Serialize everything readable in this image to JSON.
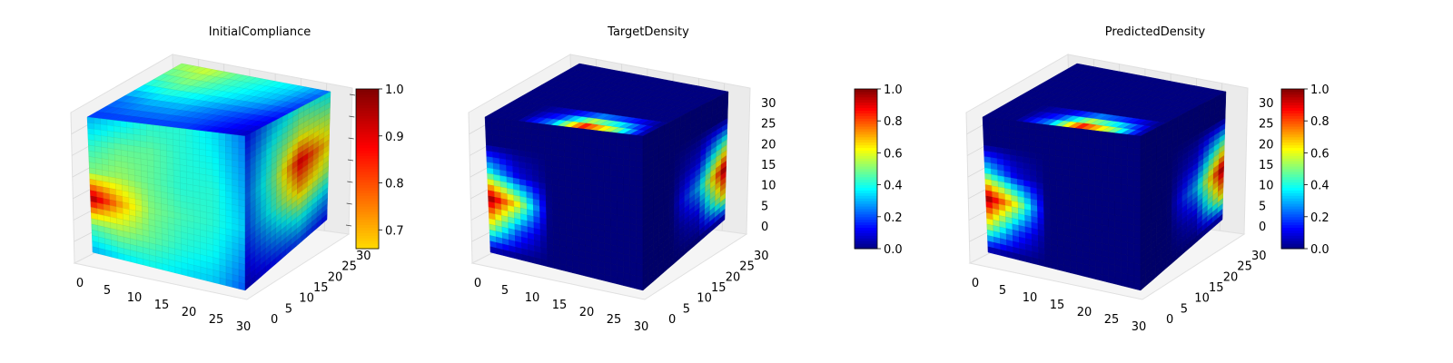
{
  "chart_data": [
    {
      "type": "voxel-3d",
      "title": "InitialCompliance",
      "x_ticks": [
        "0",
        "5",
        "10",
        "15",
        "20",
        "25",
        "30"
      ],
      "y_ticks": [
        "0",
        "5",
        "10",
        "15",
        "20",
        "25",
        "30"
      ],
      "z_ticks": [],
      "colorbar": {
        "min": 0.66,
        "max": 1.0,
        "ticks": [
          "0.7",
          "0.8",
          "0.9",
          "1.0"
        ],
        "tick_values": [
          0.7,
          0.8,
          0.9,
          1.0
        ]
      },
      "colormap": "jet",
      "front_face_levels": [
        [
          0.76,
          0.78,
          0.8,
          0.8,
          0.78,
          0.74
        ],
        [
          0.8,
          0.82,
          0.82,
          0.8,
          0.79,
          0.75
        ],
        [
          0.83,
          0.84,
          0.82,
          0.8,
          0.8,
          0.76
        ],
        [
          0.99,
          0.9,
          0.83,
          0.81,
          0.8,
          0.77
        ],
        [
          0.82,
          0.84,
          0.82,
          0.8,
          0.79,
          0.75
        ],
        [
          0.76,
          0.78,
          0.79,
          0.78,
          0.77,
          0.73
        ]
      ],
      "side_face_levels": [
        [
          0.7,
          0.76,
          0.8,
          0.78
        ],
        [
          0.72,
          0.8,
          0.86,
          0.84
        ],
        [
          0.73,
          0.82,
          0.97,
          0.88
        ],
        [
          0.72,
          0.8,
          0.9,
          0.84
        ],
        [
          0.7,
          0.75,
          0.8,
          0.76
        ],
        [
          0.68,
          0.7,
          0.72,
          0.7
        ]
      ],
      "top_face_levels": [
        [
          0.84,
          0.86,
          0.82,
          0.8,
          0.78,
          0.74
        ],
        [
          0.8,
          0.82,
          0.8,
          0.78,
          0.76,
          0.72
        ],
        [
          0.74,
          0.76,
          0.76,
          0.74,
          0.72,
          0.7
        ],
        [
          0.72,
          0.72,
          0.72,
          0.72,
          0.7,
          0.68
        ]
      ]
    },
    {
      "type": "voxel-3d",
      "title": "TargetDensity",
      "x_ticks": [
        "0",
        "5",
        "10",
        "15",
        "20",
        "25",
        "30"
      ],
      "y_ticks": [
        "0",
        "5",
        "10",
        "15",
        "20",
        "25",
        "30"
      ],
      "z_ticks": [
        "0",
        "5",
        "10",
        "15",
        "20",
        "25",
        "30"
      ],
      "colorbar": {
        "min": 0.0,
        "max": 1.0,
        "ticks": [
          "0.0",
          "0.2",
          "0.4",
          "0.6",
          "0.8",
          "1.0"
        ],
        "tick_values": [
          0.0,
          0.2,
          0.4,
          0.6,
          0.8,
          1.0
        ]
      },
      "colormap": "jet",
      "front_face_levels": [
        [
          0.0,
          0.0,
          0.0,
          0.0,
          0.0,
          0.0
        ],
        [
          0.0,
          0.0,
          0.0,
          0.0,
          0.0,
          0.0
        ],
        [
          0.4,
          0.1,
          0.0,
          0.0,
          0.0,
          0.0
        ],
        [
          1.0,
          0.6,
          0.0,
          0.0,
          0.0,
          0.0
        ],
        [
          0.6,
          0.2,
          0.0,
          0.0,
          0.0,
          0.0
        ],
        [
          0.0,
          0.0,
          0.0,
          0.0,
          0.0,
          0.0
        ]
      ],
      "side_face_levels": [
        [
          0.0,
          0.0,
          0.0,
          0.0
        ],
        [
          0.0,
          0.0,
          0.0,
          0.0
        ],
        [
          0.0,
          0.0,
          0.1,
          0.5
        ],
        [
          0.0,
          0.0,
          0.3,
          1.0
        ],
        [
          0.0,
          0.0,
          0.1,
          0.7
        ],
        [
          0.0,
          0.0,
          0.0,
          0.0
        ]
      ],
      "top_face_levels": [
        [
          0.0,
          0.0,
          0.0,
          0.0,
          0.0,
          0.0
        ],
        [
          0.0,
          0.0,
          0.0,
          0.0,
          0.0,
          0.0
        ],
        [
          0.0,
          0.0,
          0.0,
          0.0,
          0.0,
          0.0
        ],
        [
          0.0,
          0.0,
          0.3,
          1.0,
          0.6,
          0.0
        ]
      ]
    },
    {
      "type": "voxel-3d",
      "title": "PredictedDensity",
      "x_ticks": [
        "0",
        "5",
        "10",
        "15",
        "20",
        "25",
        "30"
      ],
      "y_ticks": [
        "0",
        "5",
        "10",
        "15",
        "20",
        "25",
        "30"
      ],
      "z_ticks": [
        "0",
        "5",
        "10",
        "15",
        "20",
        "25",
        "30"
      ],
      "colorbar": {
        "min": 0.0,
        "max": 1.0,
        "ticks": [
          "0.0",
          "0.2",
          "0.4",
          "0.6",
          "0.8",
          "1.0"
        ],
        "tick_values": [
          0.0,
          0.2,
          0.4,
          0.6,
          0.8,
          1.0
        ]
      },
      "colormap": "jet",
      "front_face_levels": [
        [
          0.0,
          0.0,
          0.0,
          0.0,
          0.0,
          0.0
        ],
        [
          0.0,
          0.0,
          0.0,
          0.0,
          0.0,
          0.0
        ],
        [
          0.4,
          0.1,
          0.0,
          0.0,
          0.0,
          0.0
        ],
        [
          1.0,
          0.6,
          0.0,
          0.0,
          0.0,
          0.0
        ],
        [
          0.6,
          0.2,
          0.0,
          0.0,
          0.0,
          0.0
        ],
        [
          0.0,
          0.0,
          0.0,
          0.0,
          0.0,
          0.0
        ]
      ],
      "side_face_levels": [
        [
          0.0,
          0.0,
          0.0,
          0.0
        ],
        [
          0.0,
          0.0,
          0.0,
          0.0
        ],
        [
          0.0,
          0.0,
          0.1,
          0.5
        ],
        [
          0.0,
          0.0,
          0.3,
          1.0
        ],
        [
          0.0,
          0.0,
          0.1,
          0.7
        ],
        [
          0.0,
          0.0,
          0.0,
          0.0
        ]
      ],
      "top_face_levels": [
        [
          0.0,
          0.0,
          0.0,
          0.0,
          0.0,
          0.0
        ],
        [
          0.0,
          0.0,
          0.0,
          0.0,
          0.0,
          0.0
        ],
        [
          0.0,
          0.0,
          0.0,
          0.0,
          0.0,
          0.0
        ],
        [
          0.0,
          0.0,
          0.3,
          1.0,
          0.6,
          0.0
        ]
      ]
    }
  ]
}
